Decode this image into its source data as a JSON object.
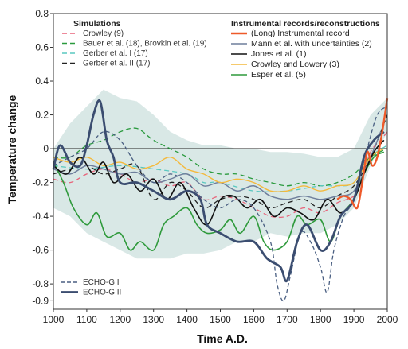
{
  "chart_data": {
    "type": "line",
    "xlabel": "Time A.D.",
    "ylabel": "Temperature change",
    "xlim": [
      1000,
      2000
    ],
    "ylim": [
      -0.95,
      0.8
    ],
    "x_ticks": [
      1000,
      1100,
      1200,
      1300,
      1400,
      1500,
      1600,
      1700,
      1800,
      1900,
      2000
    ],
    "y_ticks": [
      0.8,
      0.6,
      0.4,
      0.2,
      0,
      -0.2,
      -0.4,
      -0.6,
      -0.8,
      -0.9
    ],
    "y_tick_labels": [
      "0.8",
      "0.6",
      "0.4",
      "0.2",
      "0",
      "-0.2",
      "-0.4",
      "-0.6",
      "-0.8",
      "-0.9"
    ],
    "zero_line": true,
    "legend_simulations": {
      "heading": "Simulations",
      "entries": [
        {
          "label": "Crowley (9)",
          "series": "crowley_sim"
        },
        {
          "label": "Bauer et al. (18), Brovkin et al. (19)",
          "series": "bauer"
        },
        {
          "label": "Gerber et al. I (17)",
          "series": "gerber1"
        },
        {
          "label": "Gerber et al. II (17)",
          "series": "gerber2"
        }
      ]
    },
    "legend_records": {
      "heading": "Instrumental records/reconstructions",
      "entries": [
        {
          "label": "(Long) Instrumental record",
          "series": "instrumental"
        },
        {
          "label": "Mann et al. with uncertainties (2)",
          "series": "mann"
        },
        {
          "label": "Jones et al. (1)",
          "series": "jones"
        },
        {
          "label": "Crowley and Lowery (3)",
          "series": "crowley_lowery"
        },
        {
          "label": "Esper et al. (5)",
          "series": "esper"
        }
      ]
    },
    "legend_echo": {
      "entries": [
        {
          "label": "ECHO-G I",
          "series": "echo1"
        },
        {
          "label": "ECHO-G II",
          "series": "echo2"
        }
      ]
    },
    "uncertainty_band": {
      "x": [
        1000,
        1050,
        1100,
        1150,
        1200,
        1250,
        1300,
        1350,
        1400,
        1450,
        1500,
        1550,
        1600,
        1650,
        1700,
        1750,
        1800,
        1850,
        1900,
        1950,
        2000
      ],
      "upper": [
        0.0,
        0.15,
        0.25,
        0.35,
        0.3,
        0.28,
        0.2,
        0.1,
        0.05,
        0.02,
        0.02,
        0.0,
        0.0,
        -0.02,
        -0.02,
        -0.03,
        -0.05,
        -0.05,
        0.0,
        0.2,
        0.3
      ],
      "lower": [
        -0.35,
        -0.4,
        -0.5,
        -0.55,
        -0.6,
        -0.65,
        -0.65,
        -0.65,
        -0.62,
        -0.62,
        -0.6,
        -0.55,
        -0.55,
        -0.5,
        -0.52,
        -0.5,
        -0.5,
        -0.45,
        -0.35,
        -0.1,
        0.1
      ]
    },
    "series": [
      {
        "key": "crowley_sim",
        "color": "#e8647a",
        "dash": "6,4",
        "width": 1.3,
        "x": [
          1000,
          1050,
          1100,
          1150,
          1200,
          1250,
          1300,
          1350,
          1400,
          1450,
          1500,
          1550,
          1600,
          1650,
          1700,
          1750,
          1800,
          1850,
          1900,
          1920,
          1950,
          1980,
          2000
        ],
        "values": [
          -0.18,
          -0.2,
          -0.15,
          -0.12,
          -0.15,
          -0.2,
          -0.18,
          -0.22,
          -0.2,
          -0.3,
          -0.28,
          -0.3,
          -0.35,
          -0.4,
          -0.4,
          -0.35,
          -0.38,
          -0.32,
          -0.28,
          -0.2,
          -0.02,
          0.05,
          0.1
        ]
      },
      {
        "key": "bauer",
        "color": "#2a9a3e",
        "dash": "6,4",
        "width": 1.3,
        "x": [
          1000,
          1050,
          1100,
          1150,
          1200,
          1250,
          1300,
          1350,
          1400,
          1450,
          1500,
          1550,
          1600,
          1650,
          1700,
          1750,
          1800,
          1850,
          1900,
          1950,
          2000
        ],
        "values": [
          -0.05,
          -0.05,
          0.02,
          0.05,
          0.1,
          0.12,
          0.05,
          0.0,
          -0.05,
          -0.12,
          -0.15,
          -0.15,
          -0.18,
          -0.2,
          -0.22,
          -0.2,
          -0.22,
          -0.2,
          -0.15,
          -0.05,
          0.0
        ]
      },
      {
        "key": "gerber1",
        "color": "#5ac8c0",
        "dash": "6,4",
        "width": 1.3,
        "x": [
          1000,
          1100,
          1200,
          1300,
          1400,
          1450,
          1500,
          1600,
          1700,
          1800,
          1850,
          1900,
          1950,
          2000
        ],
        "values": [
          -0.1,
          -0.12,
          -0.1,
          -0.12,
          -0.15,
          -0.2,
          -0.2,
          -0.25,
          -0.25,
          -0.22,
          -0.22,
          -0.2,
          -0.05,
          0.02
        ]
      },
      {
        "key": "gerber2",
        "color": "#222222",
        "dash": "6,4",
        "width": 1.3,
        "x": [
          1000,
          1050,
          1100,
          1150,
          1200,
          1250,
          1300,
          1350,
          1400,
          1450,
          1500,
          1550,
          1600,
          1650,
          1700,
          1750,
          1800,
          1850,
          1900,
          1950,
          2000
        ],
        "values": [
          -0.15,
          -0.12,
          -0.1,
          -0.15,
          -0.12,
          -0.1,
          -0.3,
          -0.2,
          -0.25,
          -0.35,
          -0.3,
          -0.28,
          -0.3,
          -0.35,
          -0.32,
          -0.3,
          -0.35,
          -0.28,
          -0.22,
          -0.05,
          0.2
        ]
      },
      {
        "key": "mann",
        "color": "#6f7f9c",
        "dash": "",
        "width": 1.5,
        "x": [
          1000,
          1050,
          1100,
          1150,
          1200,
          1250,
          1300,
          1350,
          1400,
          1450,
          1500,
          1550,
          1600,
          1650,
          1700,
          1750,
          1800,
          1850,
          1900,
          1950,
          1980
        ],
        "values": [
          -0.12,
          -0.15,
          -0.1,
          -0.12,
          -0.15,
          -0.14,
          -0.2,
          -0.18,
          -0.15,
          -0.22,
          -0.2,
          -0.25,
          -0.22,
          -0.28,
          -0.3,
          -0.28,
          -0.3,
          -0.28,
          -0.25,
          -0.05,
          0.1
        ]
      },
      {
        "key": "crowley_lowery",
        "color": "#f4b93c",
        "dash": "",
        "width": 1.4,
        "x": [
          1000,
          1050,
          1100,
          1150,
          1200,
          1250,
          1300,
          1350,
          1400,
          1450,
          1500,
          1550,
          1600,
          1650,
          1700,
          1750,
          1800,
          1850,
          1900,
          1950,
          1990
        ],
        "values": [
          -0.05,
          -0.08,
          -0.05,
          -0.1,
          -0.08,
          -0.12,
          -0.1,
          -0.05,
          -0.12,
          -0.15,
          -0.2,
          -0.18,
          -0.2,
          -0.25,
          -0.25,
          -0.22,
          -0.25,
          -0.22,
          -0.2,
          -0.05,
          0.0
        ]
      },
      {
        "key": "esper",
        "color": "#2f9a3c",
        "dash": "",
        "width": 1.6,
        "x": [
          1000,
          1030,
          1060,
          1100,
          1130,
          1160,
          1200,
          1230,
          1260,
          1300,
          1330,
          1360,
          1400,
          1430,
          1460,
          1500,
          1530,
          1560,
          1600,
          1630,
          1660,
          1700,
          1730,
          1760,
          1800,
          1830,
          1860,
          1900,
          1930,
          1960,
          1990
        ],
        "values": [
          -0.08,
          -0.2,
          -0.35,
          -0.45,
          -0.38,
          -0.52,
          -0.5,
          -0.6,
          -0.55,
          -0.6,
          -0.45,
          -0.4,
          -0.35,
          -0.45,
          -0.5,
          -0.48,
          -0.42,
          -0.5,
          -0.4,
          -0.55,
          -0.6,
          -0.55,
          -0.4,
          -0.45,
          -0.42,
          -0.55,
          -0.4,
          -0.3,
          -0.15,
          -0.05,
          -0.02
        ]
      },
      {
        "key": "jones",
        "color": "#111111",
        "dash": "",
        "width": 1.6,
        "x": [
          1000,
          1040,
          1080,
          1120,
          1150,
          1180,
          1220,
          1260,
          1300,
          1340,
          1380,
          1420,
          1460,
          1500,
          1540,
          1580,
          1620,
          1660,
          1700,
          1740,
          1780,
          1820,
          1860,
          1900,
          1930,
          1960,
          1990
        ],
        "values": [
          -0.1,
          -0.15,
          -0.05,
          -0.15,
          -0.08,
          -0.2,
          -0.15,
          -0.25,
          -0.18,
          -0.3,
          -0.2,
          -0.35,
          -0.45,
          -0.3,
          -0.28,
          -0.35,
          -0.3,
          -0.4,
          -0.35,
          -0.38,
          -0.42,
          -0.3,
          -0.38,
          -0.3,
          -0.15,
          -0.02,
          0.05
        ]
      },
      {
        "key": "echo1",
        "color": "#4a5f82",
        "dash": "5,3",
        "width": 1.3,
        "x": [
          1000,
          1050,
          1100,
          1150,
          1200,
          1250,
          1300,
          1350,
          1400,
          1450,
          1500,
          1550,
          1600,
          1650,
          1670,
          1690,
          1710,
          1740,
          1770,
          1800,
          1820,
          1840,
          1870,
          1900,
          1940,
          1970,
          2000
        ],
        "values": [
          -0.1,
          -0.05,
          0.0,
          0.1,
          0.05,
          -0.1,
          -0.2,
          -0.15,
          -0.2,
          -0.3,
          -0.35,
          -0.3,
          -0.35,
          -0.55,
          -0.8,
          -0.9,
          -0.75,
          -0.5,
          -0.55,
          -0.7,
          -0.85,
          -0.6,
          -0.4,
          -0.3,
          0.0,
          0.2,
          0.25
        ]
      },
      {
        "key": "echo2",
        "color": "#3b4d70",
        "dash": "",
        "width": 2.8,
        "x": [
          1000,
          1020,
          1050,
          1080,
          1100,
          1120,
          1140,
          1160,
          1180,
          1200,
          1250,
          1300,
          1350,
          1400,
          1440,
          1460,
          1500,
          1550,
          1600,
          1640,
          1680,
          1700,
          1730,
          1760,
          1800,
          1830,
          1860,
          1900,
          1930,
          1960,
          1990
        ],
        "values": [
          -0.12,
          0.02,
          -0.08,
          -0.1,
          0.02,
          0.2,
          0.28,
          0.05,
          -0.05,
          -0.2,
          -0.2,
          -0.25,
          -0.3,
          -0.25,
          -0.3,
          -0.45,
          -0.5,
          -0.55,
          -0.55,
          -0.65,
          -0.7,
          -0.78,
          -0.55,
          -0.45,
          -0.6,
          -0.55,
          -0.4,
          -0.3,
          -0.05,
          0.05,
          0.1
        ]
      },
      {
        "key": "instrumental",
        "color": "#ee5a2a",
        "dash": "",
        "width": 2.4,
        "x": [
          1850,
          1870,
          1890,
          1910,
          1925,
          1940,
          1955,
          1970,
          1985,
          2000
        ],
        "values": [
          -0.3,
          -0.28,
          -0.3,
          -0.35,
          -0.2,
          -0.02,
          -0.1,
          -0.05,
          0.1,
          0.3
        ]
      }
    ]
  }
}
